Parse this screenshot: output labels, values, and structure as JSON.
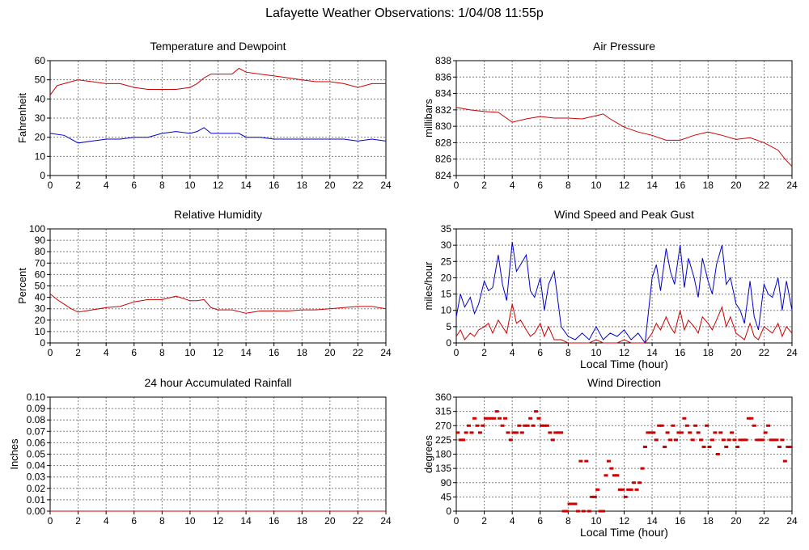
{
  "page": {
    "title": "Lafayette Weather Observations: 1/04/08 11:55p"
  },
  "colors": {
    "red": "#cc0000",
    "blue": "#0000cc",
    "grid": "#808080"
  },
  "chart_data": [
    {
      "id": "temp",
      "type": "line",
      "title": "Temperature and Dewpoint",
      "xlabel": "",
      "ylabel": "Fahrenheit",
      "xlim": [
        0,
        24
      ],
      "ylim": [
        0,
        60
      ],
      "x_ticks": [
        0,
        2,
        4,
        6,
        8,
        10,
        12,
        14,
        16,
        18,
        20,
        22,
        24
      ],
      "y_ticks": [
        0,
        10,
        20,
        30,
        40,
        50,
        60
      ],
      "grid": true,
      "series": [
        {
          "color": "red",
          "x": [
            0,
            0.5,
            1,
            1.5,
            2,
            3,
            4,
            5,
            6,
            7,
            8,
            9,
            10,
            10.5,
            11,
            11.5,
            12,
            13,
            13.5,
            14,
            15,
            16,
            17,
            18,
            19,
            20,
            21,
            22,
            23,
            24
          ],
          "y": [
            42,
            47,
            48,
            49,
            50,
            49,
            48,
            48,
            46,
            45,
            45,
            45,
            46,
            48,
            51,
            53,
            53,
            53,
            56,
            54,
            53,
            52,
            51,
            50,
            49,
            49,
            48,
            46,
            48,
            48
          ]
        },
        {
          "color": "blue",
          "x": [
            0,
            1,
            2,
            3,
            4,
            5,
            6,
            7,
            8,
            9,
            10,
            10.5,
            11,
            11.5,
            12,
            13,
            13.5,
            14,
            15,
            16,
            17,
            18,
            19,
            20,
            21,
            22,
            23,
            24
          ],
          "y": [
            22,
            21,
            17,
            18,
            19,
            19,
            20,
            20,
            22,
            23,
            22,
            23,
            25,
            22,
            22,
            22,
            22,
            20,
            20,
            19,
            19,
            19,
            19,
            19,
            19,
            18,
            19,
            18
          ]
        }
      ]
    },
    {
      "id": "pressure",
      "type": "line",
      "title": "Air Pressure",
      "xlabel": "",
      "ylabel": "millibars",
      "xlim": [
        0,
        24
      ],
      "ylim": [
        824,
        838
      ],
      "x_ticks": [
        0,
        2,
        4,
        6,
        8,
        10,
        12,
        14,
        16,
        18,
        20,
        22,
        24
      ],
      "y_ticks": [
        824,
        826,
        828,
        830,
        832,
        834,
        836,
        838
      ],
      "grid": true,
      "series": [
        {
          "color": "red",
          "x": [
            0,
            1,
            2,
            3,
            4,
            5,
            6,
            7,
            8,
            9,
            10,
            10.5,
            11,
            12,
            13,
            14,
            15,
            16,
            17,
            18,
            19,
            20,
            21,
            22,
            23,
            23.5,
            24
          ],
          "y": [
            832.3,
            832,
            831.8,
            831.7,
            830.5,
            830.9,
            831.2,
            831,
            831,
            830.9,
            831.3,
            831.5,
            830.9,
            829.9,
            829.3,
            828.9,
            828.3,
            828.3,
            828.9,
            829.3,
            828.9,
            828.4,
            828.6,
            828,
            827.1,
            826,
            825.1
          ]
        }
      ]
    },
    {
      "id": "humidity",
      "type": "line",
      "title": "Relative Humidity",
      "xlabel": "",
      "ylabel": "Percent",
      "xlim": [
        0,
        24
      ],
      "ylim": [
        0,
        100
      ],
      "x_ticks": [
        0,
        2,
        4,
        6,
        8,
        10,
        12,
        14,
        16,
        18,
        20,
        22,
        24
      ],
      "y_ticks": [
        0,
        10,
        20,
        30,
        40,
        50,
        60,
        70,
        80,
        90,
        100
      ],
      "grid": true,
      "series": [
        {
          "color": "red",
          "x": [
            0,
            0.5,
            1,
            1.5,
            2,
            3,
            4,
            5,
            6,
            7,
            8,
            9,
            10,
            10.5,
            11,
            11.5,
            12,
            13,
            14,
            15,
            16,
            17,
            18,
            19,
            20,
            21,
            22,
            23,
            24
          ],
          "y": [
            43,
            38,
            34,
            30,
            27,
            29,
            31,
            32,
            36,
            38,
            38,
            41,
            37,
            37,
            38,
            31,
            29,
            29,
            26,
            28,
            28,
            28,
            29,
            29,
            30,
            31,
            32,
            32,
            30
          ]
        }
      ]
    },
    {
      "id": "wind",
      "type": "line",
      "title": "Wind Speed and Peak Gust",
      "xlabel": "Local Time (hour)",
      "ylabel": "miles/hour",
      "xlim": [
        0,
        24
      ],
      "ylim": [
        0,
        35
      ],
      "x_ticks": [
        0,
        2,
        4,
        6,
        8,
        10,
        12,
        14,
        16,
        18,
        20,
        22,
        24
      ],
      "y_ticks": [
        0,
        5,
        10,
        15,
        20,
        25,
        30,
        35
      ],
      "grid": true,
      "series": [
        {
          "color": "blue",
          "x": [
            0,
            0.3,
            0.6,
            1,
            1.3,
            1.6,
            2,
            2.3,
            2.6,
            3,
            3.3,
            3.6,
            4,
            4.3,
            4.6,
            5,
            5.3,
            5.6,
            6,
            6.3,
            6.6,
            7,
            7.5,
            8,
            8.5,
            9,
            9.5,
            10,
            10.5,
            11,
            11.5,
            12,
            12.5,
            13,
            13.5,
            14,
            14.3,
            14.6,
            15,
            15.3,
            15.6,
            16,
            16.3,
            16.6,
            17,
            17.3,
            17.6,
            18,
            18.3,
            18.6,
            19,
            19.3,
            19.6,
            20,
            20.3,
            20.6,
            21,
            21.3,
            21.6,
            22,
            22.3,
            22.6,
            23,
            23.3,
            23.6,
            24
          ],
          "y": [
            8,
            15,
            11,
            14,
            9,
            12,
            19,
            16,
            17,
            27,
            18,
            13,
            31,
            22,
            24,
            27,
            16,
            14,
            20,
            10,
            18,
            22,
            5,
            2,
            1,
            3,
            1,
            5,
            1,
            3,
            2,
            4,
            1,
            3,
            0,
            20,
            24,
            16,
            29,
            22,
            18,
            30,
            17,
            26,
            20,
            14,
            26,
            19,
            15,
            24,
            30,
            18,
            20,
            12,
            10,
            6,
            19,
            8,
            4,
            18,
            15,
            14,
            20,
            10,
            19,
            10
          ]
        },
        {
          "color": "red",
          "x": [
            0,
            0.3,
            0.6,
            1,
            1.3,
            1.6,
            2,
            2.3,
            2.6,
            3,
            3.3,
            3.6,
            4,
            4.3,
            4.6,
            5,
            5.3,
            5.6,
            6,
            6.3,
            6.6,
            7,
            7.5,
            8,
            8.5,
            9,
            9.5,
            10,
            10.5,
            11,
            11.5,
            12,
            12.5,
            13,
            13.5,
            14,
            14.3,
            14.6,
            15,
            15.3,
            15.6,
            16,
            16.3,
            16.6,
            17,
            17.3,
            17.6,
            18,
            18.3,
            18.6,
            19,
            19.3,
            19.6,
            20,
            20.3,
            20.6,
            21,
            21.3,
            21.6,
            22,
            22.3,
            22.6,
            23,
            23.3,
            23.6,
            24
          ],
          "y": [
            2,
            4,
            1,
            3,
            2,
            4,
            5,
            6,
            3,
            7,
            5,
            3,
            12,
            6,
            7,
            4,
            2,
            3,
            6,
            2,
            5,
            1,
            1,
            0,
            0,
            0,
            0,
            1,
            0,
            0,
            0,
            1,
            0,
            0,
            0,
            3,
            6,
            4,
            8,
            5,
            3,
            10,
            4,
            7,
            5,
            3,
            8,
            6,
            4,
            7,
            11,
            5,
            8,
            3,
            2,
            1,
            6,
            2,
            1,
            5,
            4,
            3,
            6,
            2,
            5,
            3
          ]
        }
      ]
    },
    {
      "id": "rain",
      "type": "line",
      "title": "24 hour Accumulated Rainfall",
      "xlabel": "",
      "ylabel": "Inches",
      "xlim": [
        0,
        24
      ],
      "ylim": [
        0,
        0.1
      ],
      "x_ticks": [
        0,
        2,
        4,
        6,
        8,
        10,
        12,
        14,
        16,
        18,
        20,
        22,
        24
      ],
      "y_ticks": [
        "0.00",
        "0.01",
        "0.02",
        "0.03",
        "0.04",
        "0.05",
        "0.06",
        "0.07",
        "0.08",
        "0.09",
        "0.10"
      ],
      "grid": true,
      "series": [
        {
          "color": "red",
          "x": [
            0,
            24
          ],
          "y": [
            0,
            0
          ]
        }
      ]
    },
    {
      "id": "direction",
      "type": "scatter",
      "title": "Wind Direction",
      "xlabel": "Local Time (hour)",
      "ylabel": "degrees",
      "xlim": [
        0,
        24
      ],
      "ylim": [
        0,
        360
      ],
      "x_ticks": [
        0,
        2,
        4,
        6,
        8,
        10,
        12,
        14,
        16,
        18,
        20,
        22,
        24
      ],
      "y_ticks": [
        0,
        45,
        90,
        135,
        180,
        225,
        270,
        315,
        360
      ],
      "grid": true,
      "series": [
        {
          "color": "red",
          "x": [
            0.1,
            0.3,
            0.5,
            0.7,
            0.9,
            1.1,
            1.3,
            1.5,
            1.7,
            1.9,
            2.1,
            2.3,
            2.5,
            2.7,
            2.9,
            3.1,
            3.3,
            3.5,
            3.7,
            3.9,
            4.1,
            4.3,
            4.5,
            4.7,
            4.9,
            5.1,
            5.3,
            5.5,
            5.7,
            5.9,
            6.1,
            6.3,
            6.5,
            6.7,
            6.9,
            7.1,
            7.3,
            7.5,
            7.7,
            7.9,
            8.1,
            8.3,
            8.5,
            8.7,
            8.9,
            9.1,
            9.3,
            9.5,
            9.7,
            9.9,
            10.1,
            10.3,
            10.5,
            10.7,
            10.9,
            11.1,
            11.3,
            11.5,
            11.7,
            11.9,
            12.1,
            12.3,
            12.5,
            12.7,
            12.9,
            13.1,
            13.3,
            13.5,
            13.7,
            13.9,
            14.1,
            14.3,
            14.5,
            14.7,
            14.9,
            15.1,
            15.3,
            15.5,
            15.7,
            15.9,
            16.1,
            16.3,
            16.5,
            16.7,
            16.9,
            17.1,
            17.3,
            17.5,
            17.7,
            17.9,
            18.1,
            18.3,
            18.5,
            18.7,
            18.9,
            19.1,
            19.3,
            19.5,
            19.7,
            19.9,
            20.1,
            20.3,
            20.5,
            20.7,
            20.9,
            21.1,
            21.3,
            21.5,
            21.7,
            21.9,
            22.1,
            22.3,
            22.5,
            22.7,
            22.9,
            23.1,
            23.3,
            23.5,
            23.7,
            23.9
          ],
          "y": [
            248,
            225,
            225,
            248,
            270,
            248,
            293,
            270,
            248,
            270,
            293,
            293,
            293,
            293,
            315,
            293,
            270,
            293,
            248,
            225,
            248,
            248,
            270,
            248,
            270,
            270,
            293,
            270,
            315,
            293,
            270,
            270,
            270,
            248,
            225,
            248,
            248,
            248,
            0,
            0,
            23,
            23,
            23,
            0,
            158,
            0,
            158,
            0,
            45,
            45,
            68,
            0,
            0,
            113,
            158,
            135,
            113,
            113,
            68,
            68,
            45,
            68,
            68,
            90,
            68,
            90,
            135,
            203,
            248,
            248,
            248,
            225,
            270,
            270,
            203,
            248,
            225,
            270,
            225,
            248,
            248,
            293,
            270,
            248,
            225,
            270,
            248,
            225,
            203,
            270,
            203,
            225,
            248,
            180,
            248,
            225,
            203,
            225,
            248,
            225,
            203,
            225,
            225,
            225,
            293,
            293,
            270,
            225,
            225,
            225,
            248,
            270,
            225,
            225,
            225,
            203,
            225,
            158,
            203,
            203
          ]
        }
      ]
    }
  ]
}
